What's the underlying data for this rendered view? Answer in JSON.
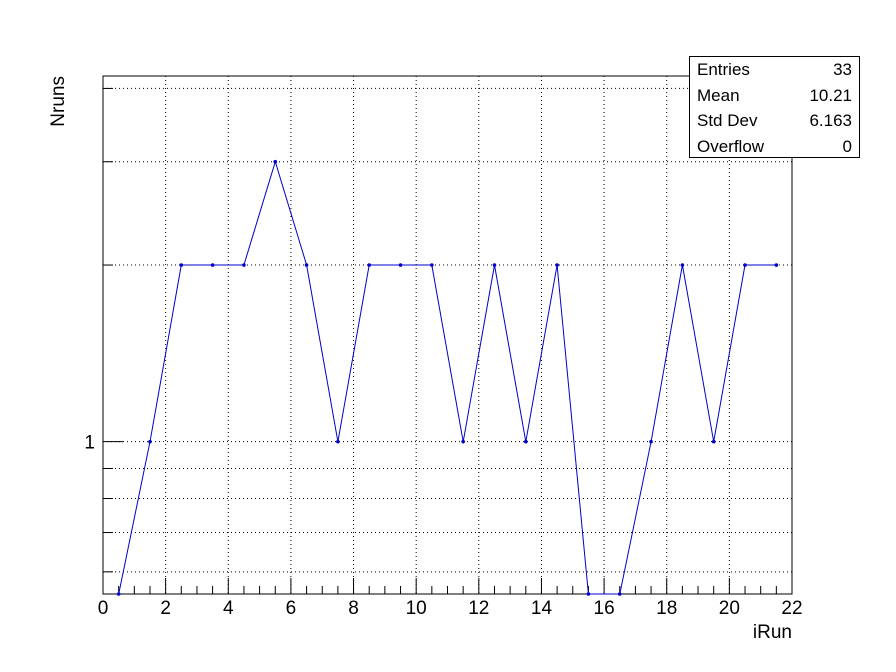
{
  "chart_data": {
    "type": "line",
    "title": "",
    "xlabel": "iRun",
    "ylabel": "Nruns",
    "xlim": [
      0,
      22
    ],
    "ylim": [
      0.55,
      4.2
    ],
    "yscale": "log",
    "grid": true,
    "x_ticks": [
      0,
      2,
      4,
      6,
      8,
      10,
      12,
      14,
      16,
      18,
      20,
      22
    ],
    "y_tick_labels": [
      {
        "value": 1,
        "label": "1"
      }
    ],
    "series": [
      {
        "name": "",
        "color": "#0000cc",
        "x": [
          0.5,
          1.5,
          2.5,
          3.5,
          4.5,
          5.5,
          6.5,
          7.5,
          8.5,
          9.5,
          10.5,
          11.5,
          12.5,
          13.5,
          14.5,
          15.5,
          16.5,
          17.5,
          18.5,
          19.5,
          20.5,
          21.5
        ],
        "y": [
          0.5,
          1,
          2,
          2,
          2,
          3,
          2,
          1,
          2,
          2,
          2,
          1,
          2,
          1,
          2,
          0.5,
          0.5,
          1,
          2,
          1,
          2,
          2
        ]
      }
    ]
  },
  "stats": [
    {
      "label": "Entries",
      "value": "33"
    },
    {
      "label": "Mean",
      "value": "10.21"
    },
    {
      "label": "Std Dev",
      "value": "6.163"
    },
    {
      "label": "Overflow",
      "value": "0"
    }
  ]
}
